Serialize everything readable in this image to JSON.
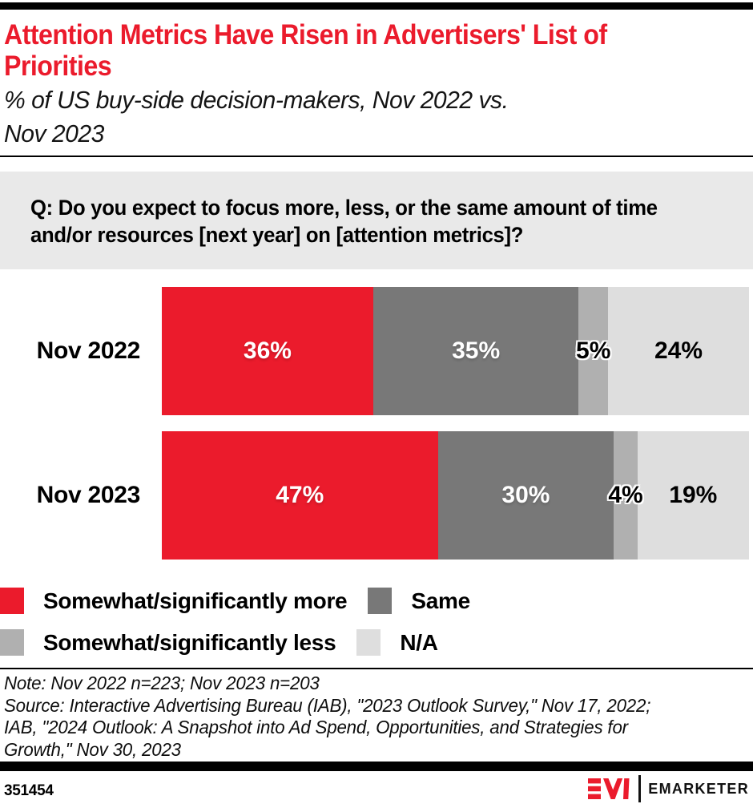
{
  "colors": {
    "red": "#eb1b2c",
    "dark_gray": "#787878",
    "mid_gray": "#b0b0b0",
    "light_gray": "#dedede",
    "box_gray": "#e9e9e9"
  },
  "header": {
    "title_lines": [
      "Attention Metrics Have Risen in Advertisers' List of",
      "Priorities"
    ],
    "subtitle_lines": [
      "% of US buy-side decision-makers, Nov 2022 vs.",
      "Nov 2023"
    ]
  },
  "question": {
    "lines": [
      "Q: Do you expect to focus more, less, or the same amount of time",
      "and/or resources [next year] on [attention metrics]?"
    ]
  },
  "chart_data": {
    "type": "bar",
    "orientation": "horizontal",
    "stacked": true,
    "unit": "%",
    "xlim": [
      0,
      100
    ],
    "grid": false,
    "legend_position": "bottom",
    "categories": [
      "Nov 2022",
      "Nov 2023"
    ],
    "series": [
      {
        "name": "Somewhat/significantly more",
        "color": "#eb1b2c",
        "values": [
          36,
          47
        ]
      },
      {
        "name": "Same",
        "color": "#787878",
        "values": [
          35,
          30
        ]
      },
      {
        "name": "Somewhat/significantly less",
        "color": "#b0b0b0",
        "values": [
          5,
          4
        ]
      },
      {
        "name": "N/A",
        "color": "#dedede",
        "values": [
          24,
          19
        ]
      }
    ],
    "value_labels": [
      [
        "36%",
        "35%",
        "5%",
        "24%"
      ],
      [
        "47%",
        "30%",
        "4%",
        "19%"
      ]
    ]
  },
  "notes": {
    "lines": [
      "Note: Nov 2022 n=223; Nov 2023 n=203",
      "Source: Interactive Advertising Bureau (IAB), \"2023 Outlook Survey,\" Nov 17, 2022;",
      "IAB, \"2024 Outlook: A Snapshot into Ad Spend, Opportunities, and Strategies for",
      "Growth,\" Nov 30, 2023"
    ]
  },
  "footer": {
    "chart_id": "351454",
    "brand": "EMARKETER",
    "brand_monogram": "EM"
  }
}
